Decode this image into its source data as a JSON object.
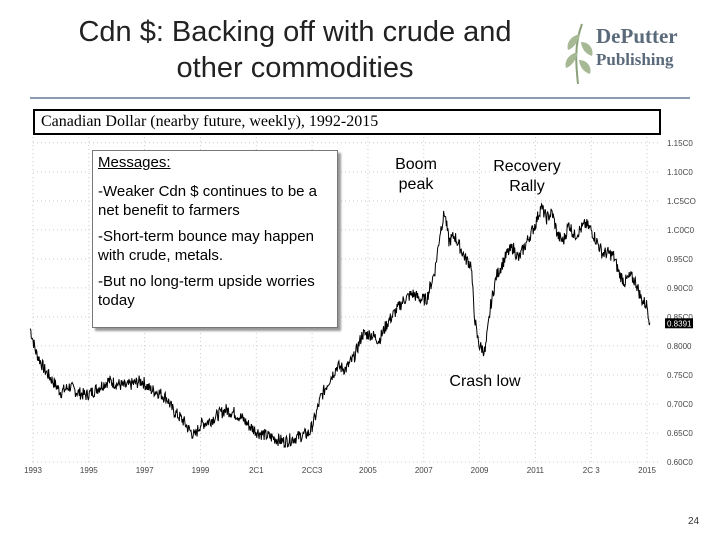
{
  "slide": {
    "title_line1": "Cdn $: Backing off with crude and",
    "title_line2": "other commodities",
    "logo_line1": "DePutter",
    "logo_line2": "Publishing",
    "page_number": "24"
  },
  "messages": {
    "heading": "Messages",
    "heading_colon": ":",
    "line1": "-Weaker Cdn $ continues to be a net benefit to farmers",
    "line2": "-Short-term bounce may happen with crude, metals.",
    "line3": "-But no long-term upside worries today"
  },
  "annotations": {
    "boom": "Boom peak",
    "recovery": "Recovery Rally",
    "crash": "Crash low"
  },
  "colors": {
    "line": "#000000",
    "grid": "#cccccc",
    "title_rule": "#8a9bb0"
  },
  "chart_data": {
    "type": "line",
    "title": "Canadian Dollar (nearby future, weekly), 1992-2015",
    "xlim": [
      1993,
      2015.5
    ],
    "ylim": [
      0.6,
      1.16
    ],
    "x_ticks": [
      1993,
      1995,
      1997,
      1999,
      2001,
      2003,
      2005,
      2007,
      2009,
      2011,
      2013,
      2015
    ],
    "x_tick_labels": [
      "1993",
      "1995",
      "1997",
      "1999",
      "2C1",
      "2CC3",
      "2005",
      "2007",
      "2009",
      "2011",
      "2C 3",
      "2015"
    ],
    "y_ticks": [
      1.15,
      1.1,
      1.05,
      1.0,
      0.95,
      0.9,
      0.85,
      0.8,
      0.75,
      0.7,
      0.65,
      0.6
    ],
    "y_tick_labels": [
      "1.15C0",
      "1.10C0",
      "1.C5CO",
      "1.C0C0",
      "0.95C0",
      "0.90C0",
      "0.85C0",
      "0.8000",
      "0.75C0",
      "0.70C0",
      "0.65C0",
      "0.60C0"
    ],
    "last_value_label": "0.8391",
    "last_value": 0.839,
    "series": [
      {
        "x": [
          1992.9,
          1993.1,
          1993.4,
          1993.7,
          1994.0,
          1994.3,
          1994.6,
          1994.9,
          1995.1,
          1995.4,
          1995.7,
          1996.0,
          1996.3,
          1996.6,
          1996.9,
          1997.2,
          1997.5,
          1997.8,
          1998.0,
          1998.2,
          1998.4,
          1998.6,
          1998.8,
          1999.0,
          1999.3,
          1999.6,
          1999.9,
          2000.2,
          2000.5,
          2000.8,
          2001.1,
          2001.4,
          2001.7,
          2002.0,
          2002.3,
          2002.6,
          2002.9,
          2003.1,
          2003.3,
          2003.6,
          2003.9,
          2004.2,
          2004.5,
          2004.8,
          2005.1,
          2005.4,
          2005.7,
          2006.0,
          2006.3,
          2006.6,
          2006.9,
          2007.1,
          2007.4,
          2007.6,
          2007.75,
          2007.9,
          2008.1,
          2008.3,
          2008.5,
          2008.7,
          2008.8,
          2008.9,
          2009.0,
          2009.2,
          2009.4,
          2009.6,
          2009.8,
          2010.0,
          2010.2,
          2010.4,
          2010.6,
          2010.8,
          2011.0,
          2011.2,
          2011.4,
          2011.6,
          2011.8,
          2012.0,
          2012.2,
          2012.4,
          2012.6,
          2012.8,
          2013.0,
          2013.2,
          2013.4,
          2013.6,
          2013.8,
          2014.0,
          2014.2,
          2014.4,
          2014.6,
          2014.8,
          2015.0,
          2015.1
        ],
        "values": [
          0.83,
          0.79,
          0.76,
          0.74,
          0.72,
          0.73,
          0.72,
          0.715,
          0.72,
          0.73,
          0.74,
          0.735,
          0.73,
          0.735,
          0.74,
          0.725,
          0.72,
          0.71,
          0.69,
          0.68,
          0.67,
          0.655,
          0.645,
          0.665,
          0.67,
          0.68,
          0.69,
          0.685,
          0.675,
          0.66,
          0.65,
          0.645,
          0.64,
          0.635,
          0.64,
          0.645,
          0.65,
          0.675,
          0.71,
          0.74,
          0.765,
          0.76,
          0.78,
          0.82,
          0.82,
          0.81,
          0.84,
          0.86,
          0.88,
          0.89,
          0.88,
          0.88,
          0.93,
          1.0,
          1.03,
          0.98,
          0.99,
          0.97,
          0.95,
          0.94,
          0.86,
          0.82,
          0.8,
          0.79,
          0.87,
          0.92,
          0.94,
          0.96,
          0.97,
          0.95,
          0.97,
          0.99,
          1.01,
          1.04,
          1.02,
          1.03,
          0.99,
          0.98,
          1.01,
          0.99,
          1.0,
          1.01,
          1.0,
          0.98,
          0.96,
          0.96,
          0.955,
          0.925,
          0.91,
          0.92,
          0.91,
          0.88,
          0.87,
          0.84
        ]
      }
    ]
  }
}
